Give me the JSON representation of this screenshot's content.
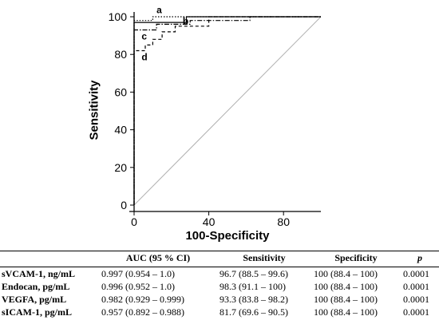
{
  "chart_data": {
    "type": "line",
    "xlabel": "100-Specificity",
    "ylabel": "Sensitivity",
    "xlim": [
      0,
      100
    ],
    "ylim": [
      0,
      100
    ],
    "xticks": [
      "0",
      "40",
      "80"
    ],
    "yticks": [
      "0",
      "20",
      "40",
      "60",
      "80",
      "100"
    ],
    "reference_line": {
      "x": [
        0,
        100
      ],
      "y": [
        0,
        100
      ]
    },
    "series": [
      {
        "name": "a",
        "style": "dotted",
        "x": [
          0,
          0,
          10,
          10,
          100
        ],
        "y": [
          0,
          98,
          98,
          100,
          100
        ]
      },
      {
        "name": "b",
        "style": "solid",
        "x": [
          0,
          0,
          28,
          28,
          100
        ],
        "y": [
          0,
          97,
          97,
          100,
          100
        ]
      },
      {
        "name": "c",
        "style": "dash-dot",
        "x": [
          0,
          0,
          12,
          12,
          30,
          30,
          62,
          62,
          100
        ],
        "y": [
          0,
          93,
          93,
          96,
          96,
          98,
          98,
          100,
          100
        ]
      },
      {
        "name": "d",
        "style": "dashed",
        "x": [
          0,
          0,
          6,
          6,
          10,
          10,
          15,
          15,
          22,
          22,
          40,
          40,
          100
        ],
        "y": [
          0,
          82,
          82,
          85,
          85,
          88,
          88,
          92,
          92,
          95,
          95,
          100,
          100
        ]
      }
    ]
  },
  "table": {
    "headers": [
      "",
      "AUC (95 % CI)",
      "Sensitivity",
      "Specificity",
      "p"
    ],
    "rows": [
      [
        "sVCAM-1, ng/mL",
        "0.997 (0.954 – 1.0)",
        "96.7 (88.5 – 99.6)",
        "100 (88.4 – 100)",
        "0.0001"
      ],
      [
        "Endocan, pg/mL",
        "0.996 (0.952 – 1.0)",
        "98.3 (91.1 – 100)",
        "100 (88.4 – 100)",
        "0.0001"
      ],
      [
        "VEGFA, pg/mL",
        "0.982 (0.929 – 0.999)",
        "93.3 (83.8 – 98.2)",
        "100 (88.4 – 100)",
        "0.0001"
      ],
      [
        "sICAM-1, pg/mL",
        "0.957 (0.892 – 0.988)",
        "81.7 (69.6 – 90.5)",
        "100 (88.4 – 100)",
        "0.0001"
      ]
    ]
  }
}
